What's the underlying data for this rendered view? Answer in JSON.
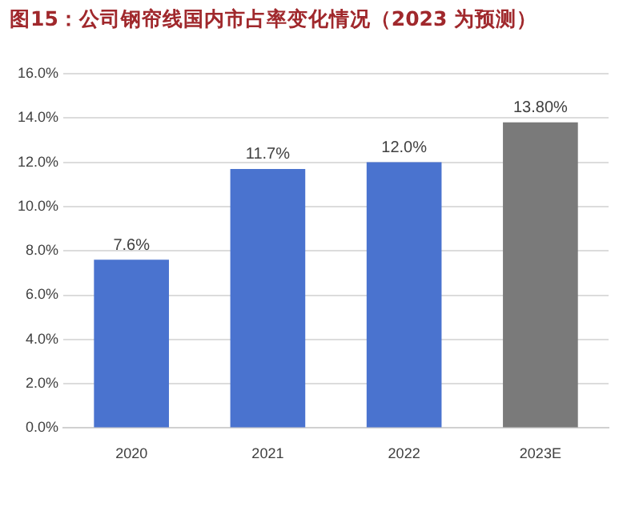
{
  "chart_data": {
    "type": "bar",
    "title": "图15：公司钢帘线国内市占率变化情况（2023 为预测）",
    "categories": [
      "2020",
      "2021",
      "2022",
      "2023E"
    ],
    "values": [
      7.6,
      11.7,
      12.0,
      13.8
    ],
    "colors": [
      "#4a73cf",
      "#4a73cf",
      "#4a73cf",
      "#7a7a7a"
    ],
    "value_labels": [
      "7.6%",
      "11.7%",
      "12.0%",
      "13.80%"
    ],
    "ylim": [
      0,
      16
    ],
    "yticks": [
      {
        "value": 0,
        "label": "0.0%"
      },
      {
        "value": 2,
        "label": "2.0%"
      },
      {
        "value": 4,
        "label": "4.0%"
      },
      {
        "value": 6,
        "label": "6.0%"
      },
      {
        "value": 8,
        "label": "8.0%"
      },
      {
        "value": 10,
        "label": "10.0%"
      },
      {
        "value": 12,
        "label": "12.0%"
      },
      {
        "value": 14,
        "label": "14.0%"
      },
      {
        "value": 16,
        "label": "16.0%"
      }
    ],
    "grid": "y"
  }
}
